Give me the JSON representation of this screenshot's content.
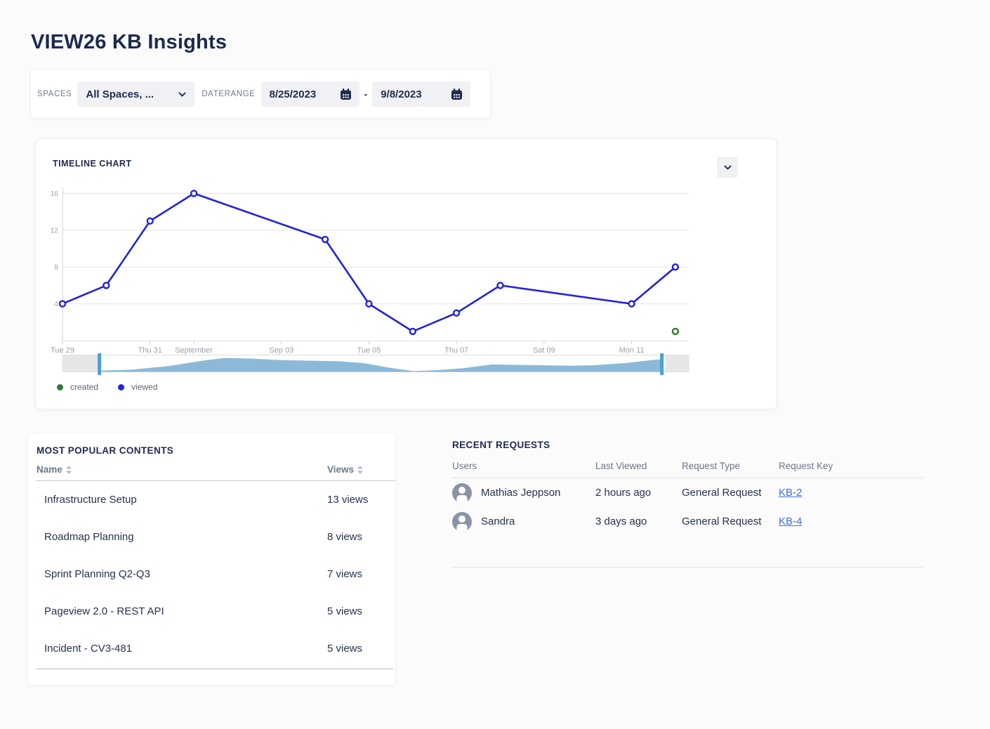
{
  "page": {
    "title": "VIEW26 KB Insights"
  },
  "filters": {
    "spaces_label": "SPACES",
    "spaces_value": "All Spaces, ...",
    "daterange_label": "DATERANGE",
    "date_from": "8/25/2023",
    "date_separator": "-",
    "date_to": "9/8/2023"
  },
  "timeline": {
    "title": "TIMELINE CHART",
    "legend": [
      {
        "label": "created",
        "color": "#2e7d32"
      },
      {
        "label": "viewed",
        "color": "#2222dd"
      }
    ]
  },
  "chart_data": {
    "type": "line",
    "title": "TIMELINE CHART",
    "grid": true,
    "legend_position": "bottom-left",
    "ylim": [
      0,
      17
    ],
    "y_ticks": [
      4,
      8,
      12,
      16
    ],
    "x_unit": "day (Aug 29 = 0)",
    "x_ticks": [
      {
        "day": 0,
        "label": "Tue 29"
      },
      {
        "day": 2,
        "label": "Thu 31"
      },
      {
        "day": 3,
        "label": "September"
      },
      {
        "day": 5,
        "label": "Sep 03"
      },
      {
        "day": 7,
        "label": "Tue 05"
      },
      {
        "day": 9,
        "label": "Thu 07"
      },
      {
        "day": 11,
        "label": "Sat 09"
      },
      {
        "day": 13,
        "label": "Mon 11"
      }
    ],
    "series": [
      {
        "name": "viewed",
        "color": "#2222dd",
        "marker": "open-circle",
        "points": [
          [
            0,
            4
          ],
          [
            1,
            6
          ],
          [
            2,
            13
          ],
          [
            3,
            16
          ],
          [
            6,
            11
          ],
          [
            7,
            4
          ],
          [
            8,
            1
          ],
          [
            9,
            3
          ],
          [
            10,
            6
          ],
          [
            13,
            4
          ],
          [
            14,
            8
          ]
        ]
      },
      {
        "name": "created",
        "color": "#2e7d32",
        "marker": "open-circle",
        "points": [
          [
            14,
            1
          ]
        ]
      }
    ],
    "overview_area": [
      [
        0.062,
        0.08
      ],
      [
        0.11,
        0.15
      ],
      [
        0.17,
        0.4
      ],
      [
        0.23,
        0.8
      ],
      [
        0.26,
        0.95
      ],
      [
        0.3,
        0.9
      ],
      [
        0.35,
        0.8
      ],
      [
        0.44,
        0.72
      ],
      [
        0.48,
        0.6
      ],
      [
        0.52,
        0.3
      ],
      [
        0.56,
        0.05
      ],
      [
        0.6,
        0.12
      ],
      [
        0.64,
        0.25
      ],
      [
        0.685,
        0.5
      ],
      [
        0.72,
        0.48
      ],
      [
        0.76,
        0.45
      ],
      [
        0.81,
        0.42
      ],
      [
        0.85,
        0.45
      ],
      [
        0.9,
        0.6
      ],
      [
        0.94,
        0.8
      ],
      [
        0.955,
        0.85
      ]
    ],
    "brush_selection": {
      "left_frac": 0.059,
      "right_frac": 0.957
    },
    "colors": {
      "line_viewed": "#2222dd",
      "point_created": "#2e7d32",
      "brush_area": "#8db9d8",
      "brush_handle": "#4ba0d2"
    }
  },
  "popular": {
    "title": "MOST POPULAR CONTENTS",
    "columns": [
      {
        "label": "Name"
      },
      {
        "label": "Views"
      }
    ],
    "rows": [
      {
        "name": "Infrastructure Setup",
        "views": "13 views"
      },
      {
        "name": "Roadmap Planning",
        "views": "8 views"
      },
      {
        "name": "Sprint Planning Q2-Q3",
        "views": "7 views"
      },
      {
        "name": "Pageview 2.0 - REST API",
        "views": "5 views"
      },
      {
        "name": "Incident - CV3-481",
        "views": "5 views"
      }
    ]
  },
  "requests": {
    "title": "RECENT REQUESTS",
    "columns": [
      "Users",
      "Last Viewed",
      "Request Type",
      "Request Key"
    ],
    "rows": [
      {
        "user": "Mathias Jeppson",
        "last_viewed": "2 hours ago",
        "request_type": "General Request",
        "request_key": "KB-2"
      },
      {
        "user": "Sandra",
        "last_viewed": "3 days ago",
        "request_type": "General Request",
        "request_key": "KB-4"
      }
    ],
    "link_color": "#3b73d9"
  }
}
